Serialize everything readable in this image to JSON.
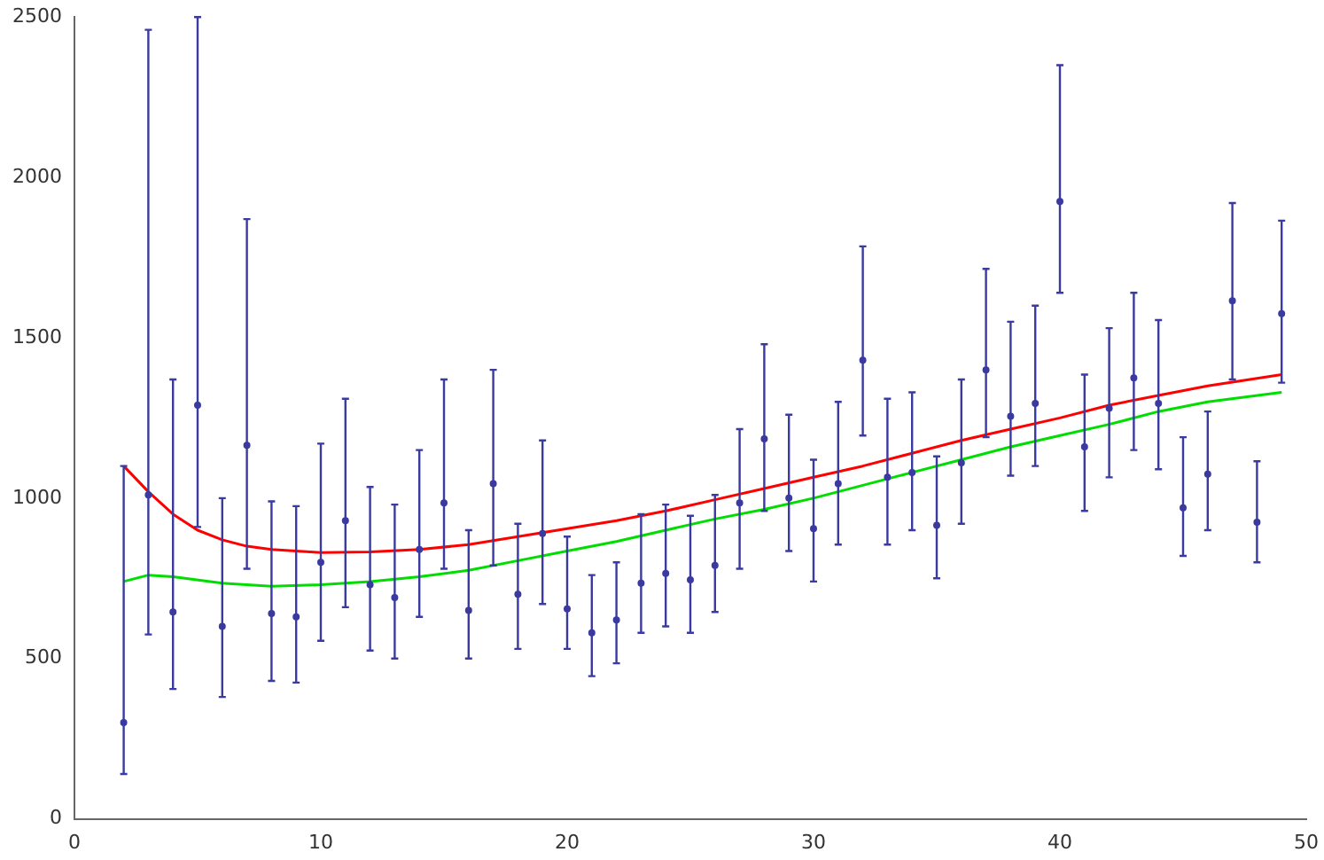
{
  "chart_data": {
    "type": "scatter",
    "xlim": [
      0,
      50
    ],
    "xticks": [
      0,
      10,
      20,
      30,
      40,
      50
    ],
    "ylim": [
      0,
      2500
    ],
    "yticks": [
      0,
      500,
      1000,
      1500,
      2000,
      2500
    ],
    "grid": false,
    "legend": false,
    "series": [
      {
        "type": "scatter",
        "color": "#3a3aa0",
        "marker": "circle",
        "x": [
          2,
          3,
          4,
          5,
          6,
          7,
          8,
          9,
          10,
          11,
          12,
          13,
          14,
          15,
          16,
          17,
          18,
          19,
          20,
          21,
          22,
          23,
          24,
          25,
          26,
          27,
          28,
          29,
          30,
          31,
          32,
          33,
          34,
          35,
          36,
          37,
          38,
          39,
          40,
          41,
          42,
          43,
          44,
          45,
          46,
          47,
          48,
          49
        ],
        "values": [
          300,
          1010,
          645,
          1290,
          600,
          1165,
          640,
          630,
          800,
          930,
          730,
          690,
          840,
          985,
          650,
          1045,
          700,
          890,
          655,
          580,
          620,
          735,
          765,
          745,
          790,
          985,
          1185,
          1000,
          905,
          1045,
          1430,
          1065,
          1080,
          915,
          1110,
          1400,
          1255,
          1295,
          1925,
          1160,
          1280,
          1375,
          1295,
          970,
          1075,
          1615,
          925,
          1575
        ],
        "errors": [
          [
            140,
            1100
          ],
          [
            575,
            2460
          ],
          [
            405,
            1370
          ],
          [
            910,
            2500
          ],
          [
            380,
            1000
          ],
          [
            780,
            1870
          ],
          [
            430,
            990
          ],
          [
            425,
            975
          ],
          [
            555,
            1170
          ],
          [
            660,
            1310
          ],
          [
            525,
            1035
          ],
          [
            500,
            980
          ],
          [
            630,
            1150
          ],
          [
            780,
            1370
          ],
          [
            500,
            900
          ],
          [
            790,
            1400
          ],
          [
            530,
            920
          ],
          [
            670,
            1180
          ],
          [
            530,
            880
          ],
          [
            445,
            760
          ],
          [
            485,
            800
          ],
          [
            580,
            950
          ],
          [
            600,
            980
          ],
          [
            580,
            945
          ],
          [
            645,
            1010
          ],
          [
            780,
            1215
          ],
          [
            960,
            1480
          ],
          [
            835,
            1260
          ],
          [
            740,
            1120
          ],
          [
            855,
            1300
          ],
          [
            1195,
            1785
          ],
          [
            855,
            1310
          ],
          [
            900,
            1330
          ],
          [
            750,
            1130
          ],
          [
            920,
            1370
          ],
          [
            1190,
            1715
          ],
          [
            1070,
            1550
          ],
          [
            1100,
            1600
          ],
          [
            1640,
            2350
          ],
          [
            960,
            1385
          ],
          [
            1065,
            1530
          ],
          [
            1150,
            1640
          ],
          [
            1090,
            1555
          ],
          [
            820,
            1190
          ],
          [
            900,
            1270
          ],
          [
            1370,
            1920
          ],
          [
            800,
            1115
          ],
          [
            1360,
            1865
          ]
        ]
      },
      {
        "type": "line",
        "color": "#ff0000",
        "marker": "none",
        "line_style": "solid",
        "x": [
          2,
          3,
          4,
          5,
          6,
          7,
          8,
          10,
          12,
          14,
          16,
          18,
          20,
          22,
          24,
          26,
          28,
          30,
          32,
          34,
          36,
          38,
          40,
          42,
          44,
          46,
          49
        ],
        "values": [
          1100,
          1020,
          950,
          900,
          870,
          850,
          840,
          830,
          832,
          840,
          855,
          880,
          905,
          930,
          960,
          995,
          1030,
          1065,
          1100,
          1140,
          1180,
          1215,
          1250,
          1290,
          1320,
          1350,
          1385
        ]
      },
      {
        "type": "line",
        "color": "#00dd00",
        "marker": "none",
        "line_style": "solid",
        "x": [
          2,
          3,
          4,
          6,
          8,
          10,
          12,
          14,
          16,
          18,
          20,
          22,
          24,
          26,
          28,
          30,
          32,
          34,
          36,
          38,
          40,
          42,
          44,
          46,
          49
        ],
        "values": [
          740,
          760,
          755,
          735,
          725,
          730,
          740,
          755,
          775,
          805,
          835,
          865,
          900,
          935,
          965,
          1000,
          1040,
          1080,
          1120,
          1160,
          1195,
          1230,
          1270,
          1300,
          1330
        ]
      }
    ]
  }
}
